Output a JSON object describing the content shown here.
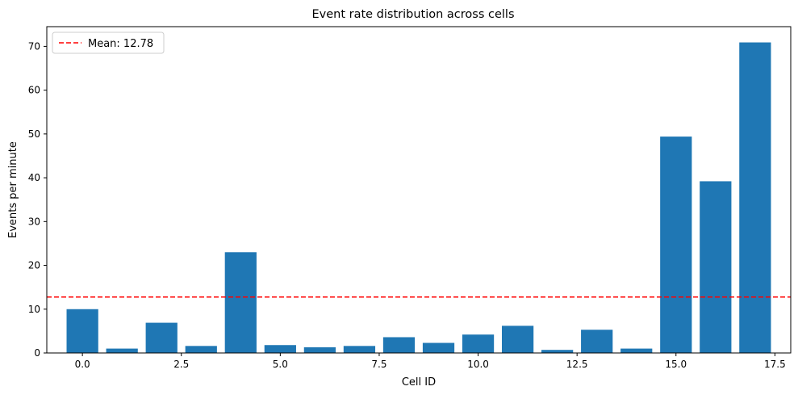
{
  "chart_data": {
    "type": "bar",
    "title": "Event rate distribution across cells",
    "xlabel": "Cell ID",
    "ylabel": "Events per minute",
    "x": [
      0,
      1,
      2,
      3,
      4,
      5,
      6,
      7,
      8,
      9,
      10,
      11,
      12,
      13,
      14,
      15,
      16,
      17
    ],
    "values": [
      10.0,
      1.0,
      6.9,
      1.6,
      23.0,
      1.8,
      1.3,
      1.6,
      3.6,
      2.3,
      4.2,
      6.2,
      0.7,
      5.3,
      1.0,
      49.4,
      39.2,
      70.9
    ],
    "xlim": [
      -0.9,
      17.9
    ],
    "ylim": [
      0,
      74.5
    ],
    "xticks": [
      0.0,
      2.5,
      5.0,
      7.5,
      10.0,
      12.5,
      15.0,
      17.5
    ],
    "xtick_labels": [
      "0.0",
      "2.5",
      "5.0",
      "7.5",
      "10.0",
      "12.5",
      "15.0",
      "17.5"
    ],
    "yticks": [
      0,
      10,
      20,
      30,
      40,
      50,
      60,
      70
    ],
    "ytick_labels": [
      "0",
      "10",
      "20",
      "30",
      "40",
      "50",
      "60",
      "70"
    ],
    "bar_color": "#1f77b4",
    "mean_line": {
      "value": 12.78,
      "label": "Mean: 12.78",
      "color": "#ff0000",
      "style": "dashed"
    },
    "legend": {
      "placement": "top-left"
    },
    "grid": false
  }
}
